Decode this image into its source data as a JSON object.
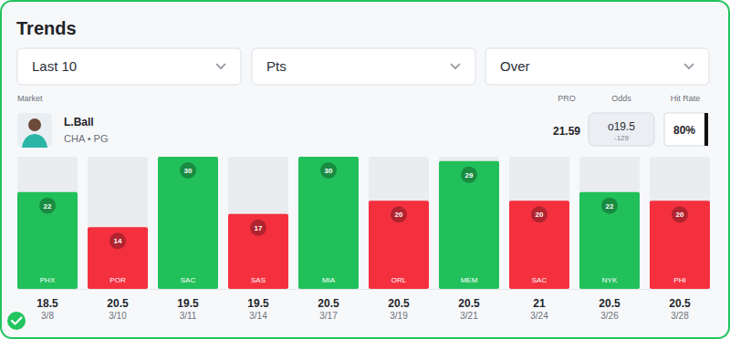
{
  "header": {
    "title": "Trends",
    "filters": [
      "Last 10",
      "Pts",
      "Over"
    ],
    "market_label": "Market",
    "columns": [
      "PRO",
      "Odds",
      "Hit Rate"
    ],
    "player": {
      "name": "L.Ball",
      "team": "CHA • PG"
    },
    "pro": 21.59,
    "odds": {
      "line": "o19.5",
      "price": "-129"
    },
    "hit_rate": "80%"
  },
  "chart_data": {
    "type": "bar",
    "categories": [
      "3/8",
      "3/10",
      "3/11",
      "3/14",
      "3/17",
      "3/19",
      "3/21",
      "3/24",
      "3/26",
      "3/28"
    ],
    "values": [
      22,
      14,
      30,
      17,
      30,
      20,
      29,
      20,
      22,
      20
    ],
    "colors": [
      "#21c05a",
      "#f4303f",
      "#21c05a",
      "#f4303f",
      "#21c05a",
      "#f4303f",
      "#21c05a",
      "#f4303f",
      "#21c05a",
      "#f4303f"
    ],
    "opponents": [
      "PHX",
      "POR",
      "SAC",
      "SAS",
      "MIA",
      "ORL",
      "MEM",
      "SAC",
      "NYK",
      "PHI"
    ],
    "lines": [
      18.5,
      20.5,
      19.5,
      19.5,
      20.5,
      20.5,
      20.5,
      21,
      20.5,
      20.5
    ],
    "ylim": [
      0,
      30
    ],
    "data_labels": true,
    "tick_labels": "x"
  }
}
